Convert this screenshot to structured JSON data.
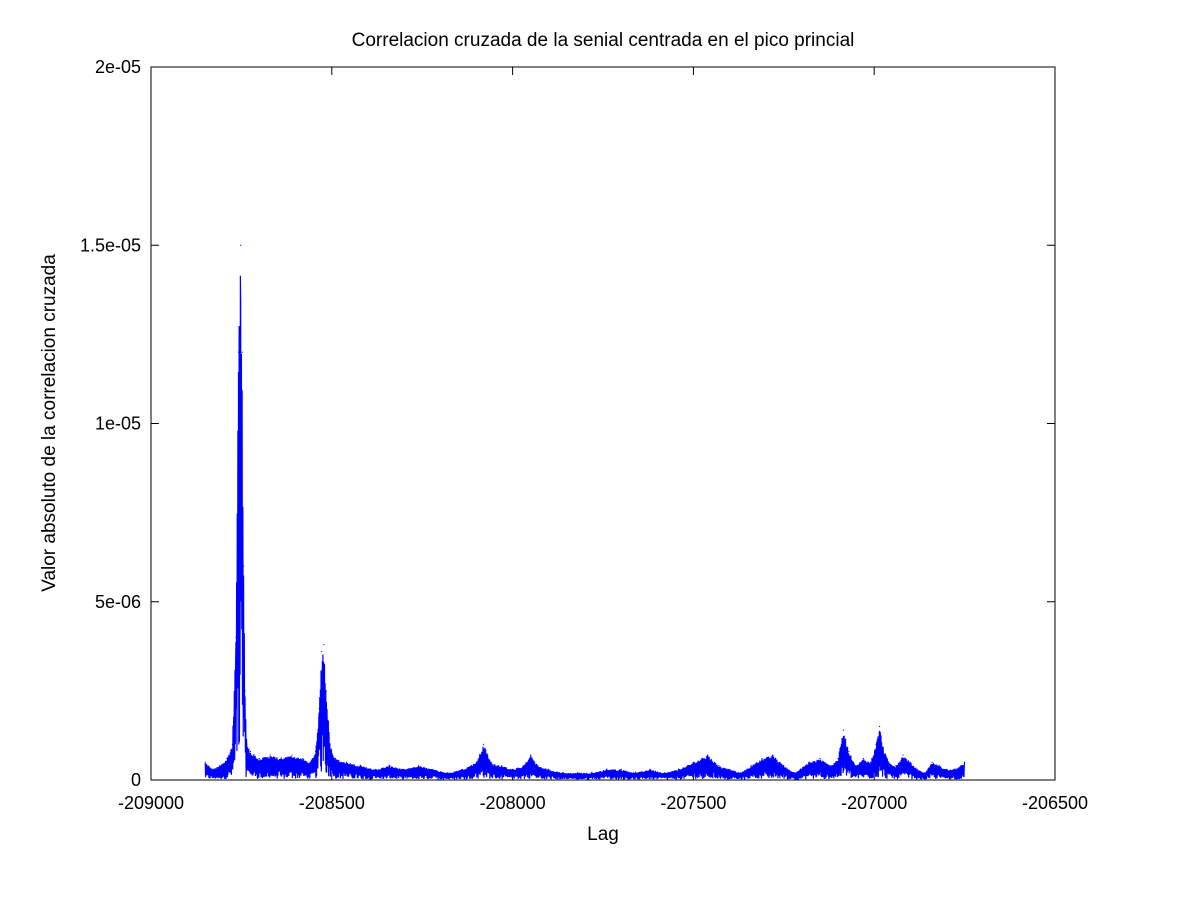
{
  "chart_data": {
    "type": "line",
    "title": "Correlacion cruzada de la senial centrada en el pico princial",
    "xlabel": "Lag",
    "ylabel": "Valor absoluto de la correlacion cruzada",
    "xlim": [
      -209000,
      -206500
    ],
    "ylim": [
      0,
      2e-05
    ],
    "xticks": [
      -209000,
      -208500,
      -208000,
      -207500,
      -207000,
      -206500
    ],
    "xtick_labels": [
      "-209000",
      "-208500",
      "-208000",
      "-207500",
      "-207000",
      "-206500"
    ],
    "yticks": [
      0,
      5e-06,
      1e-05,
      1.5e-05,
      2e-05
    ],
    "ytick_labels": [
      "0",
      "5e-06",
      "1e-05",
      "1.5e-05",
      "2e-05"
    ],
    "grid": false,
    "series_color": "#0000ff",
    "series": [
      {
        "x": [
          -208850,
          -208830,
          -208810,
          -208790,
          -208775,
          -208765,
          -208758,
          -208752,
          -208748,
          -208744,
          -208740,
          -208735,
          -208725,
          -208700,
          -208670,
          -208640,
          -208610,
          -208580,
          -208560,
          -208545,
          -208535,
          -208528,
          -208522,
          -208515,
          -208505,
          -208490,
          -208460,
          -208420,
          -208380,
          -208340,
          -208300,
          -208260,
          -208220,
          -208180,
          -208140,
          -208100,
          -208080,
          -208060,
          -208030,
          -208000,
          -207970,
          -207950,
          -207930,
          -207900,
          -207860,
          -207820,
          -207780,
          -207740,
          -207700,
          -207660,
          -207620,
          -207580,
          -207540,
          -207500,
          -207460,
          -207430,
          -207400,
          -207370,
          -207340,
          -207310,
          -207280,
          -207250,
          -207220,
          -207180,
          -207150,
          -207120,
          -207100,
          -207085,
          -207070,
          -207050,
          -207030,
          -207010,
          -206995,
          -206985,
          -206975,
          -206960,
          -206940,
          -206920,
          -206900,
          -206880,
          -206860,
          -206840,
          -206820,
          -206800,
          -206780,
          -206760,
          -206750
        ],
        "y": [
          5e-07,
          3e-07,
          4e-07,
          6e-07,
          1e-06,
          4e-06,
          1.2e-05,
          1.5e-05,
          1.2e-05,
          6e-06,
          2.5e-06,
          1e-06,
          8e-07,
          6e-07,
          7e-07,
          6e-07,
          7e-07,
          6e-07,
          5e-07,
          8e-07,
          2e-06,
          3.6e-06,
          3.8e-06,
          2.5e-06,
          1e-06,
          6e-07,
          5e-07,
          4e-07,
          3e-07,
          4e-07,
          3e-07,
          4e-07,
          3e-07,
          2e-07,
          3e-07,
          5e-07,
          1e-06,
          5e-07,
          4e-07,
          3e-07,
          4e-07,
          7e-07,
          4e-07,
          3e-07,
          2e-07,
          2e-07,
          2e-07,
          3e-07,
          3e-07,
          2e-07,
          3e-07,
          2e-07,
          3e-07,
          5e-07,
          7e-07,
          4e-07,
          3e-07,
          2e-07,
          4e-07,
          6e-07,
          7e-07,
          4e-07,
          2e-07,
          5e-07,
          6e-07,
          4e-07,
          6e-07,
          1.4e-06,
          8e-07,
          4e-07,
          6e-07,
          5e-07,
          1e-06,
          1.5e-06,
          9e-07,
          5e-07,
          4e-07,
          7e-07,
          5e-07,
          3e-07,
          2e-07,
          5e-07,
          4e-07,
          3e-07,
          3e-07,
          4e-07,
          5e-07
        ]
      }
    ]
  }
}
